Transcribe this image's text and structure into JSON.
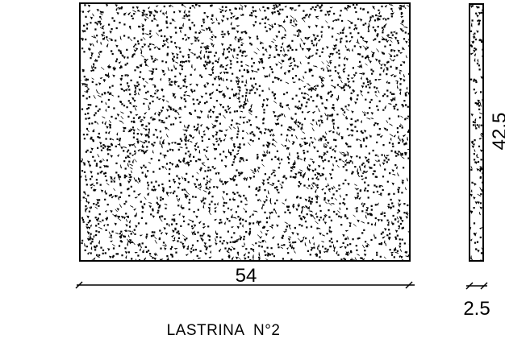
{
  "drawing": {
    "title": "LASTRINA  N°2",
    "front_view": {
      "width_label": "54"
    },
    "side_view": {
      "height_label": "42.5",
      "thickness_label": "2.5"
    },
    "colors": {
      "line": "#000000",
      "background": "#ffffff"
    }
  }
}
